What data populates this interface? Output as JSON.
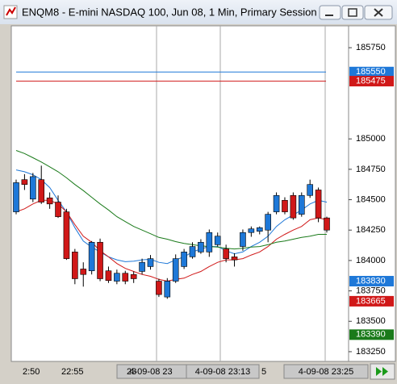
{
  "window": {
    "title": "ENQM8 - E-mini NASDAQ 100, Jun 08, 1 Min, Primary Session"
  },
  "chart_data": {
    "type": "candlestick",
    "up_color": "#1e78d8",
    "down_color": "#d01818",
    "open": [
      184400,
      184665,
      184505,
      184665,
      184515,
      184480,
      184400,
      184070,
      183930,
      183915,
      184150,
      183915,
      183830,
      183895,
      183885,
      183910,
      183950,
      183830,
      183700,
      183830,
      183950,
      184030,
      184070,
      184070,
      184130,
      184095,
      184030,
      184115,
      184230,
      184240,
      184250,
      184400,
      184495,
      184535,
      184380,
      184535,
      184580,
      184350
    ],
    "high": [
      184665,
      184710,
      184720,
      184780,
      184560,
      184535,
      184425,
      184095,
      183985,
      184160,
      184180,
      183950,
      183925,
      183915,
      183910,
      184015,
      184045,
      183850,
      183855,
      184050,
      184095,
      184150,
      184175,
      184255,
      184230,
      184130,
      184060,
      184255,
      184280,
      184280,
      184400,
      184560,
      184520,
      184560,
      184560,
      184665,
      184600,
      184360
    ],
    "low": [
      184380,
      184580,
      184480,
      184465,
      184425,
      184350,
      184005,
      183805,
      183785,
      183885,
      183830,
      183815,
      183805,
      183805,
      183815,
      183885,
      183925,
      183700,
      183685,
      183815,
      183930,
      184015,
      184055,
      184030,
      184115,
      183985,
      183950,
      184080,
      184195,
      184215,
      184150,
      184380,
      184380,
      184335,
      184360,
      184515,
      184315,
      184230
    ],
    "close": [
      184640,
      184625,
      184690,
      184480,
      184465,
      184360,
      184015,
      183850,
      183885,
      184150,
      183850,
      183835,
      183895,
      183830,
      183850,
      183985,
      184015,
      183720,
      183830,
      184015,
      184070,
      184115,
      184150,
      184230,
      184200,
      184015,
      184005,
      184230,
      184260,
      184270,
      184380,
      184535,
      184400,
      184350,
      184535,
      184625,
      184350,
      184250
    ],
    "series": [
      {
        "color": "#1e78d8",
        "values": [
          184745,
          184730,
          184705,
          184665,
          184600,
          184495,
          184400,
          184270,
          184160,
          184110,
          184070,
          184030,
          184005,
          183990,
          183995,
          184005,
          184010,
          183985,
          183975,
          184005,
          184030,
          184070,
          184095,
          184115,
          184115,
          184080,
          184055,
          184070,
          184115,
          184150,
          184200,
          184280,
          184335,
          184375,
          184415,
          184465,
          184495,
          184480
        ]
      },
      {
        "color": "#d01818",
        "values": [
          184400,
          184425,
          184465,
          184495,
          184495,
          184465,
          184400,
          184295,
          184200,
          184150,
          184080,
          184030,
          183975,
          183935,
          183910,
          183885,
          183870,
          183845,
          183830,
          183845,
          183855,
          183885,
          183910,
          183950,
          183985,
          184005,
          184005,
          184015,
          184045,
          184070,
          184115,
          184175,
          184215,
          184250,
          184280,
          184335,
          184350,
          184335
        ]
      },
      {
        "color": "#1a7a1a",
        "values": [
          184905,
          184880,
          184845,
          184810,
          184770,
          184730,
          184680,
          184625,
          184575,
          184520,
          184465,
          184415,
          184360,
          184320,
          184280,
          184250,
          184220,
          184190,
          184175,
          184155,
          184140,
          184130,
          184120,
          184115,
          184110,
          184100,
          184095,
          184100,
          184110,
          184115,
          184130,
          184150,
          184160,
          184175,
          184190,
          184200,
          184215,
          184215
        ]
      }
    ],
    "ylim": [
      183170,
      185930
    ],
    "yticks": [
      185750,
      185000,
      184750,
      184500,
      184250,
      184000,
      183750,
      183500,
      183250
    ],
    "price_markers": [
      {
        "value": 185550,
        "color": "#1e78d8",
        "line": true
      },
      {
        "value": 185475,
        "color": "#d01818",
        "line": true
      },
      {
        "value": 183830,
        "color": "#1e78d8",
        "line": false
      },
      {
        "value": 183665,
        "color": "#d01818",
        "line": false
      },
      {
        "value": 183390,
        "color": "#1a7a1a",
        "line": false
      }
    ],
    "x_labels": [
      "2:50",
      "22:55",
      "23",
      "4-09-08 23",
      "4-09-08 23:13",
      "5",
      "4-09-08 23:25"
    ]
  }
}
